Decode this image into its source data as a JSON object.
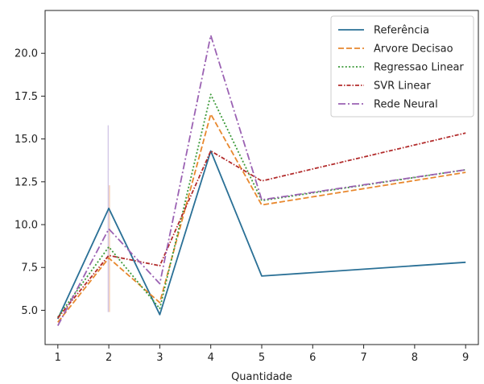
{
  "chart_data": {
    "type": "line",
    "title": "",
    "xlabel": "Quantidade",
    "ylabel": "",
    "xlim": [
      0.75,
      9.25
    ],
    "ylim": [
      3.0,
      22.5
    ],
    "xticks": [
      1,
      2,
      3,
      4,
      5,
      6,
      7,
      8,
      9
    ],
    "yticks": [
      5.0,
      7.5,
      10.0,
      12.5,
      15.0,
      17.5,
      20.0
    ],
    "ytick_labels": [
      "5.0",
      "7.5",
      "10.0",
      "12.5",
      "15.0",
      "17.5",
      "20.0"
    ],
    "legend_position": "top-right",
    "grid": false,
    "x": [
      1,
      2,
      3,
      4,
      5,
      9
    ],
    "series": [
      {
        "name": "Referência",
        "values": [
          4.5,
          10.95,
          4.75,
          14.3,
          7.0,
          7.8
        ],
        "color": "#2a7096",
        "dash": "solid"
      },
      {
        "name": "Arvore Decisao",
        "values": [
          4.3,
          8.05,
          5.45,
          16.45,
          11.15,
          13.05
        ],
        "color": "#e8882e",
        "dash": "dashed"
      },
      {
        "name": "Regressao Linear",
        "values": [
          4.6,
          8.7,
          5.1,
          17.6,
          11.4,
          13.2
        ],
        "color": "#3d9a3a",
        "dash": "dotted"
      },
      {
        "name": "SVR Linear",
        "values": [
          4.55,
          8.2,
          7.6,
          14.3,
          12.55,
          15.35
        ],
        "color": "#b22b2b",
        "dash": "dashdot-dense"
      },
      {
        "name": "Rede Neural",
        "values": [
          4.1,
          9.75,
          6.55,
          21.05,
          11.45,
          13.2
        ],
        "color": "#9b62b3",
        "dash": "dashdot"
      }
    ],
    "error_band": {
      "x": 2,
      "y_min": 4.9,
      "y_max": 15.8,
      "colors": [
        "#b8a8d8",
        "#e8a880"
      ]
    }
  }
}
